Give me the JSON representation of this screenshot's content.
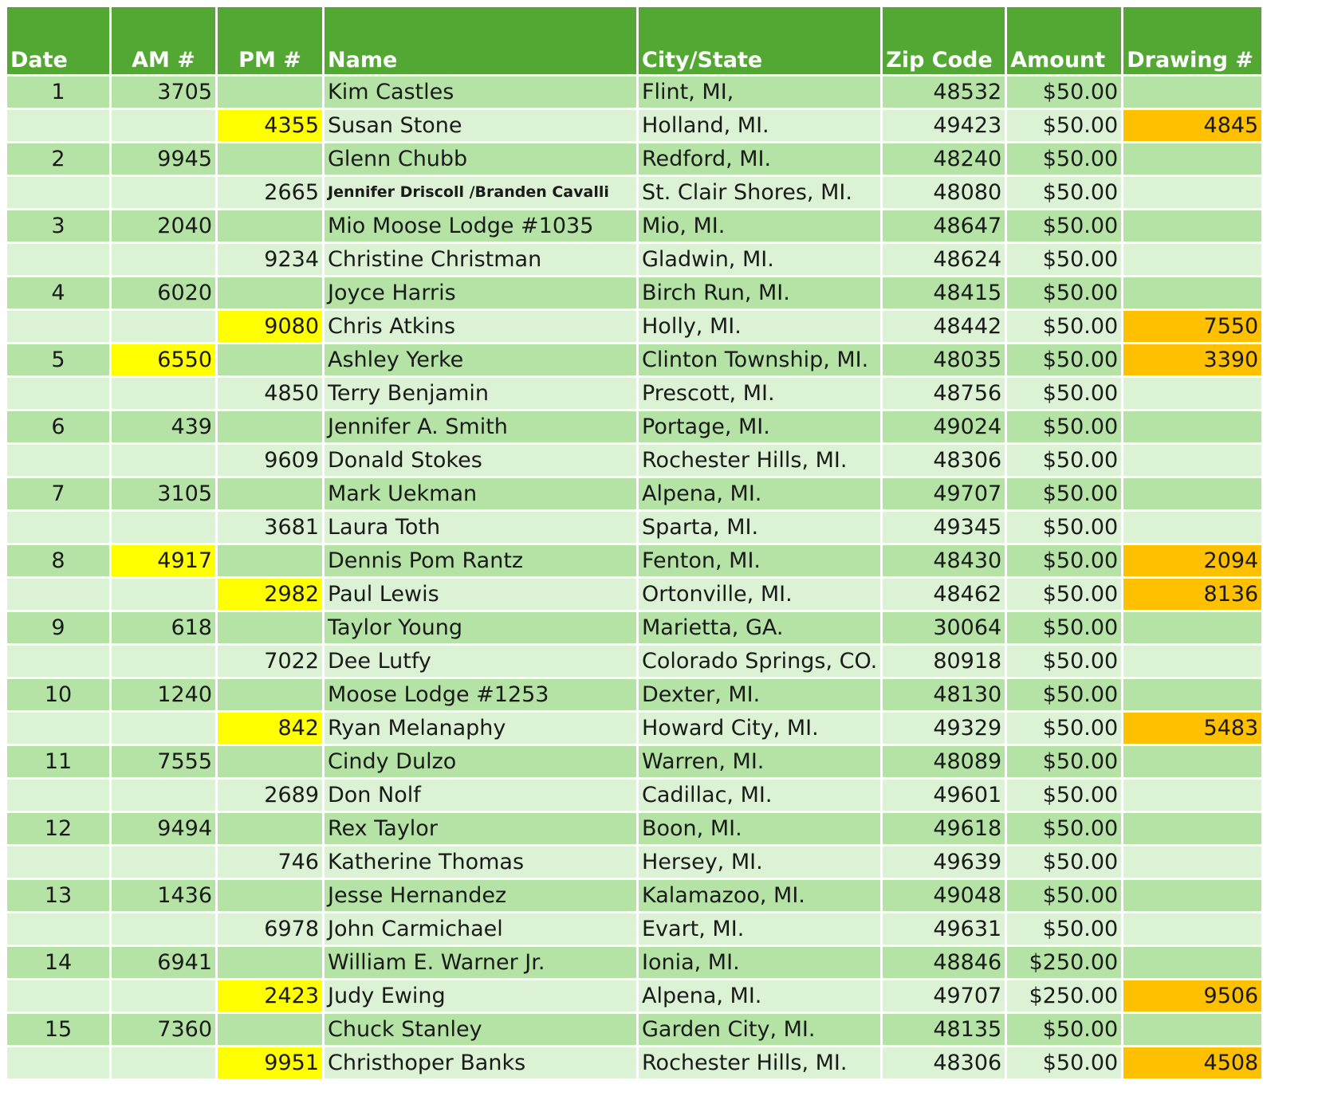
{
  "headers": [
    "Date",
    "AM #",
    "PM #",
    "Name",
    "City/State",
    "Zip Code",
    "Amount",
    "Drawing #"
  ],
  "colors": {
    "header": "#52a832",
    "row_dark": "#b5e3a6",
    "row_light": "#dcf2d4",
    "highlight_yellow": "#ffff00",
    "highlight_orange": "#ffc000"
  },
  "rows": [
    {
      "date": "1",
      "am": "3705",
      "pm": "",
      "name": "Kim Castles",
      "city": "Flint, MI,",
      "zip": "48532",
      "amount": "$50.00",
      "drawing": ""
    },
    {
      "date": "",
      "am": "",
      "pm": "4355",
      "name": "Susan Stone",
      "city": "Holland, MI.",
      "zip": "49423",
      "amount": "$50.00",
      "drawing": "4845"
    },
    {
      "date": "2",
      "am": "9945",
      "pm": "",
      "name": "Glenn Chubb",
      "city": "Redford, MI.",
      "zip": "48240",
      "amount": "$50.00",
      "drawing": ""
    },
    {
      "date": "",
      "am": "",
      "pm": "2665",
      "name": "Jennifer Driscoll /Branden Cavalli",
      "city": "St. Clair Shores, MI.",
      "zip": "48080",
      "amount": "$50.00",
      "drawing": ""
    },
    {
      "date": "3",
      "am": "2040",
      "pm": "",
      "name": "Mio Moose Lodge #1035",
      "city": "Mio, MI.",
      "zip": "48647",
      "amount": "$50.00",
      "drawing": ""
    },
    {
      "date": "",
      "am": "",
      "pm": "9234",
      "name": "Christine Christman",
      "city": "Gladwin, MI.",
      "zip": "48624",
      "amount": "$50.00",
      "drawing": ""
    },
    {
      "date": "4",
      "am": "6020",
      "pm": "",
      "name": "Joyce Harris",
      "city": "Birch Run, MI.",
      "zip": "48415",
      "amount": "$50.00",
      "drawing": ""
    },
    {
      "date": "",
      "am": "",
      "pm": "9080",
      "name": "Chris Atkins",
      "city": "Holly, MI.",
      "zip": "48442",
      "amount": "$50.00",
      "drawing": "7550"
    },
    {
      "date": "5",
      "am": "6550",
      "pm": "",
      "name": "Ashley Yerke",
      "city": "Clinton Township, MI.",
      "zip": "48035",
      "amount": "$50.00",
      "drawing": "3390"
    },
    {
      "date": "",
      "am": "",
      "pm": "4850",
      "name": "Terry Benjamin",
      "city": "Prescott, MI.",
      "zip": "48756",
      "amount": "$50.00",
      "drawing": ""
    },
    {
      "date": "6",
      "am": "439",
      "pm": "",
      "name": "Jennifer A. Smith",
      "city": "Portage, MI.",
      "zip": "49024",
      "amount": "$50.00",
      "drawing": ""
    },
    {
      "date": "",
      "am": "",
      "pm": "9609",
      "name": "Donald Stokes",
      "city": "Rochester Hills, MI.",
      "zip": "48306",
      "amount": "$50.00",
      "drawing": ""
    },
    {
      "date": "7",
      "am": "3105",
      "pm": "",
      "name": "Mark Uekman",
      "city": "Alpena, MI.",
      "zip": "49707",
      "amount": "$50.00",
      "drawing": ""
    },
    {
      "date": "",
      "am": "",
      "pm": "3681",
      "name": "Laura Toth",
      "city": "Sparta, MI.",
      "zip": "49345",
      "amount": "$50.00",
      "drawing": ""
    },
    {
      "date": "8",
      "am": "4917",
      "pm": "",
      "name": "Dennis Pom Rantz",
      "city": "Fenton, MI.",
      "zip": "48430",
      "amount": "$50.00",
      "drawing": "2094"
    },
    {
      "date": "",
      "am": "",
      "pm": "2982",
      "name": "Paul Lewis",
      "city": "Ortonville, MI.",
      "zip": "48462",
      "amount": "$50.00",
      "drawing": "8136"
    },
    {
      "date": "9",
      "am": "618",
      "pm": "",
      "name": "Taylor Young",
      "city": "Marietta, GA.",
      "zip": "30064",
      "amount": "$50.00",
      "drawing": ""
    },
    {
      "date": "",
      "am": "",
      "pm": "7022",
      "name": "Dee Lutfy",
      "city": "Colorado Springs, CO.",
      "zip": "80918",
      "amount": "$50.00",
      "drawing": ""
    },
    {
      "date": "10",
      "am": "1240",
      "pm": "",
      "name": "Moose Lodge #1253",
      "city": "Dexter, MI.",
      "zip": "48130",
      "amount": "$50.00",
      "drawing": ""
    },
    {
      "date": "",
      "am": "",
      "pm": "842",
      "name": "Ryan Melanaphy",
      "city": "Howard City, MI.",
      "zip": "49329",
      "amount": "$50.00",
      "drawing": "5483"
    },
    {
      "date": "11",
      "am": "7555",
      "pm": "",
      "name": "Cindy Dulzo",
      "city": "Warren, MI.",
      "zip": "48089",
      "amount": "$50.00",
      "drawing": ""
    },
    {
      "date": "",
      "am": "",
      "pm": "2689",
      "name": "Don Nolf",
      "city": "Cadillac, MI.",
      "zip": "49601",
      "amount": "$50.00",
      "drawing": ""
    },
    {
      "date": "12",
      "am": "9494",
      "pm": "",
      "name": "Rex Taylor",
      "city": "Boon, MI.",
      "zip": "49618",
      "amount": "$50.00",
      "drawing": ""
    },
    {
      "date": "",
      "am": "",
      "pm": "746",
      "name": "Katherine Thomas",
      "city": "Hersey, MI.",
      "zip": "49639",
      "amount": "$50.00",
      "drawing": ""
    },
    {
      "date": "13",
      "am": "1436",
      "pm": "",
      "name": "Jesse Hernandez",
      "city": "Kalamazoo, MI.",
      "zip": "49048",
      "amount": "$50.00",
      "drawing": ""
    },
    {
      "date": "",
      "am": "",
      "pm": "6978",
      "name": "John Carmichael",
      "city": "Evart, MI.",
      "zip": "49631",
      "amount": "$50.00",
      "drawing": ""
    },
    {
      "date": "14",
      "am": "6941",
      "pm": "",
      "name": "William E. Warner Jr.",
      "city": "Ionia, MI.",
      "zip": "48846",
      "amount": "$250.00",
      "drawing": ""
    },
    {
      "date": "",
      "am": "",
      "pm": "2423",
      "name": "Judy Ewing",
      "city": "Alpena, MI.",
      "zip": "49707",
      "amount": "$250.00",
      "drawing": "9506"
    },
    {
      "date": "15",
      "am": "7360",
      "pm": "",
      "name": "Chuck Stanley",
      "city": "Garden City, MI.",
      "zip": "48135",
      "amount": "$50.00",
      "drawing": ""
    },
    {
      "date": "",
      "am": "",
      "pm": "9951",
      "name": "Christhoper Banks",
      "city": "Rochester Hills, MI.",
      "zip": "48306",
      "amount": "$50.00",
      "drawing": "4508"
    }
  ]
}
